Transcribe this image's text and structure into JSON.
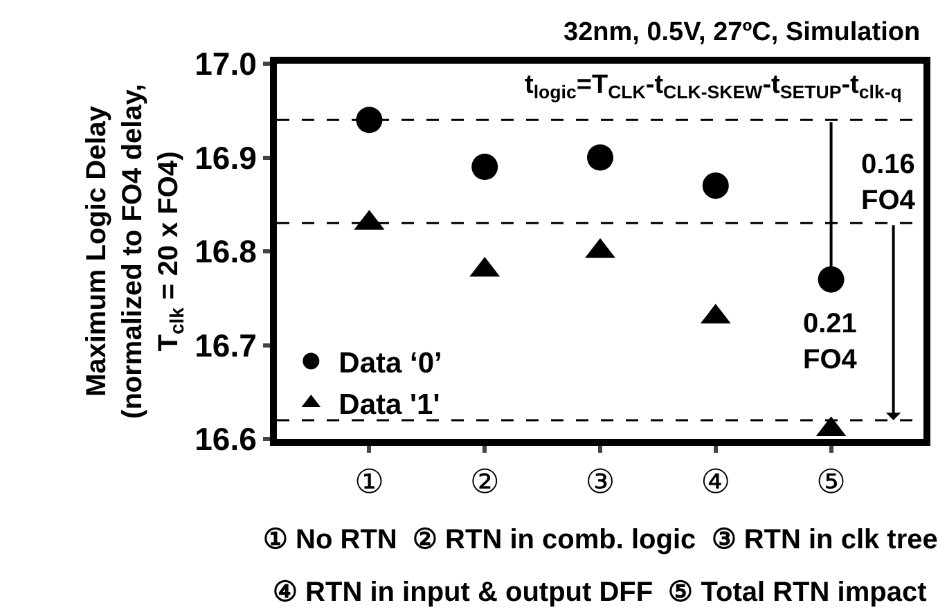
{
  "chart_data": {
    "type": "scatter",
    "title": "32nm, 0.5V, 27ºC, Simulation",
    "ylabel": "Maximum Logic Delay\n(normalized to FO4 delay,\nT$_{clk}$ = 20 x FO4)",
    "categories": [
      "①",
      "②",
      "③",
      "④",
      "⑤"
    ],
    "series": [
      {
        "name": "Data ‘0’",
        "color": "#000000",
        "marker": "circle",
        "values": [
          16.94,
          16.89,
          16.9,
          16.87,
          16.77
        ]
      },
      {
        "name": "Data '1'",
        "color": "#000000",
        "marker": "triangle",
        "values": [
          16.83,
          16.78,
          16.8,
          16.73,
          16.61
        ]
      }
    ],
    "ylim": [
      16.6,
      17.0
    ],
    "yticks": [
      {
        "value": 16.6,
        "label": "16.6"
      },
      {
        "value": 16.7,
        "label": "16.7"
      },
      {
        "value": 16.8,
        "label": "16.8"
      },
      {
        "value": 16.9,
        "label": "16.9"
      },
      {
        "value": 17.0,
        "label": "17.0"
      }
    ],
    "legend": "bottom left",
    "ref_lines": [
      {
        "axis": "y",
        "value": 16.94,
        "color": "#000000",
        "line_style": "dashed"
      },
      {
        "axis": "y",
        "value": 16.83,
        "color": "#000000",
        "line_style": "dashed"
      },
      {
        "axis": "y",
        "value": 16.62,
        "color": "#000000",
        "line_style": "dashed"
      }
    ],
    "annotations": [
      "t$_{logic}$=T$_{CLK}$-t$_{CLK-SKEW}$-t$_{SETUP}$-t$_{clk-q}$",
      {
        "text": "0.16\nFO4",
        "x": "⑤",
        "y": 16.77
      },
      {
        "text": "0.21\nFO4",
        "x": "⑤",
        "y": 16.62
      },
      "① No RTN  ② RTN in comb. logic  ③ RTN in clk tree",
      "④ RTN in input & output DFF  ⑤ Total RTN impact"
    ]
  }
}
